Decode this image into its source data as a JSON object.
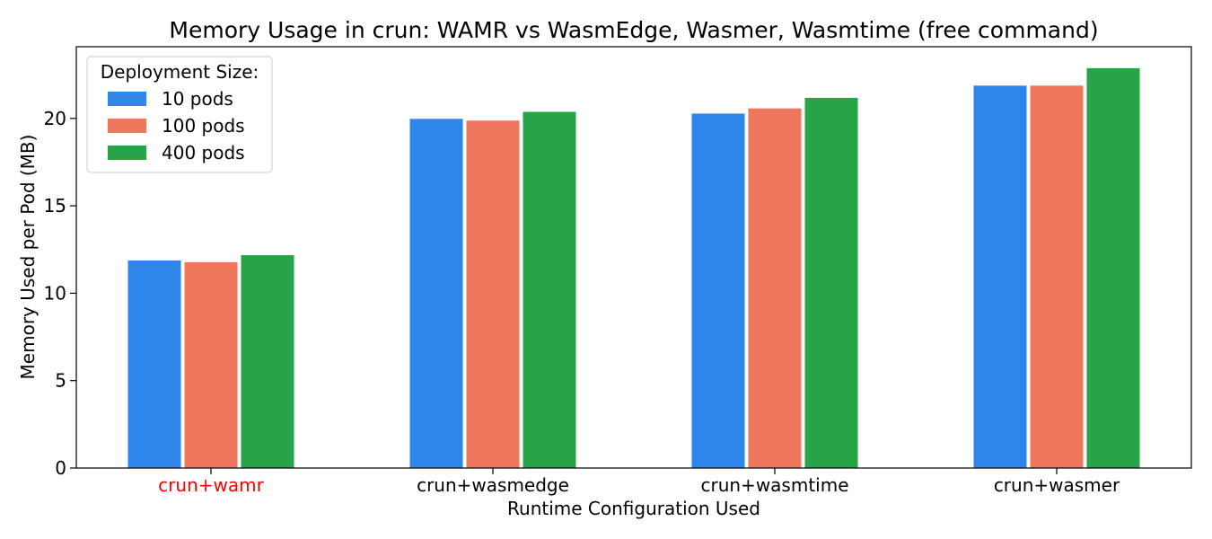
{
  "chart_data": {
    "type": "bar",
    "title": "Memory Usage in crun: WAMR vs WasmEdge, Wasmer, Wasmtime (free command)",
    "xlabel": "Runtime Configuration Used",
    "ylabel": "Memory Used per Pod (MB)",
    "categories": [
      "crun+wamr",
      "crun+wasmedge",
      "crun+wasmtime",
      "crun+wasmer"
    ],
    "highlighted_category": "crun+wamr",
    "highlight_color": "#ff0000",
    "series": [
      {
        "name": "10 pods",
        "color": "#2e86ea",
        "values": [
          11.9,
          20.0,
          20.3,
          21.9
        ]
      },
      {
        "name": "100 pods",
        "color": "#ee775d",
        "values": [
          11.8,
          19.9,
          20.6,
          21.9
        ]
      },
      {
        "name": "400 pods",
        "color": "#27a348",
        "values": [
          12.2,
          20.4,
          21.2,
          22.9
        ]
      }
    ],
    "ylim": [
      0,
      24.1
    ],
    "yticks": [
      0,
      5,
      10,
      15,
      20
    ],
    "legend": {
      "title": "Deployment Size:",
      "placement": "top-left"
    },
    "grid": false
  }
}
